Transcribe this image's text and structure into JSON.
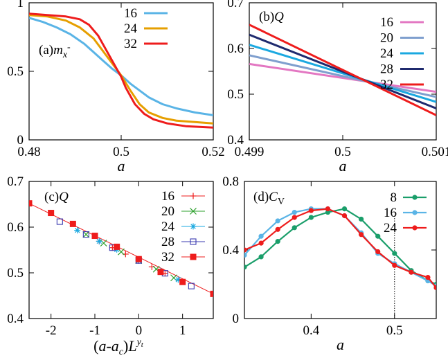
{
  "chart_data": [
    {
      "id": "a",
      "type": "line",
      "panel_label": "(a)",
      "panel_symbol": "m",
      "panel_sub": "x",
      "panel_sup": "-",
      "xlabel": "a",
      "xlim": [
        0.48,
        0.52
      ],
      "ylim": [
        0,
        1
      ],
      "xticks": [
        0.48,
        0.5,
        0.52
      ],
      "xtick_labels": [
        "0.48",
        "0.5",
        "0.52"
      ],
      "yticks": [
        0,
        0.5,
        1
      ],
      "ytick_labels": [
        "0",
        "0.5",
        "1"
      ],
      "legend_position": "top-right",
      "series": [
        {
          "name": "16",
          "color": "#5ab4e6",
          "x": [
            0.48,
            0.483,
            0.486,
            0.489,
            0.492,
            0.494,
            0.496,
            0.498,
            0.5,
            0.502,
            0.504,
            0.506,
            0.509,
            0.512,
            0.516,
            0.52
          ],
          "y": [
            0.89,
            0.86,
            0.82,
            0.77,
            0.7,
            0.64,
            0.58,
            0.52,
            0.47,
            0.41,
            0.36,
            0.31,
            0.26,
            0.23,
            0.2,
            0.18
          ]
        },
        {
          "name": "24",
          "color": "#e69f00",
          "x": [
            0.48,
            0.484,
            0.488,
            0.491,
            0.494,
            0.496,
            0.498,
            0.5,
            0.502,
            0.504,
            0.506,
            0.509,
            0.512,
            0.516,
            0.52
          ],
          "y": [
            0.91,
            0.9,
            0.87,
            0.82,
            0.74,
            0.65,
            0.56,
            0.47,
            0.36,
            0.26,
            0.2,
            0.16,
            0.14,
            0.13,
            0.12
          ]
        },
        {
          "name": "32",
          "color": "#ee1c1c",
          "x": [
            0.48,
            0.484,
            0.488,
            0.491,
            0.493,
            0.495,
            0.497,
            0.499,
            0.5,
            0.501,
            0.503,
            0.505,
            0.507,
            0.51,
            0.514,
            0.52
          ],
          "y": [
            0.92,
            0.91,
            0.9,
            0.88,
            0.84,
            0.76,
            0.64,
            0.52,
            0.46,
            0.38,
            0.26,
            0.19,
            0.15,
            0.12,
            0.1,
            0.09
          ]
        }
      ]
    },
    {
      "id": "b",
      "type": "line",
      "panel_label": "(b)",
      "panel_symbol": "Q",
      "xlabel": "a",
      "xlim": [
        0.499,
        0.501
      ],
      "ylim": [
        0.4,
        0.7
      ],
      "xticks": [
        0.499,
        0.5,
        0.501
      ],
      "xtick_labels": [
        "0.499",
        "0.5",
        "0.501"
      ],
      "yticks": [
        0.4,
        0.5,
        0.6,
        0.7
      ],
      "ytick_labels": [
        "0.4",
        "0.5",
        "0.6",
        "0.7"
      ],
      "legend_position": "top-right",
      "series": [
        {
          "name": "16",
          "color": "#e377c2",
          "x": [
            0.499,
            0.501
          ],
          "y": [
            0.566,
            0.505
          ]
        },
        {
          "name": "20",
          "color": "#7f9fce",
          "x": [
            0.499,
            0.501
          ],
          "y": [
            0.585,
            0.494
          ]
        },
        {
          "name": "24",
          "color": "#1aa8e0",
          "x": [
            0.499,
            0.501
          ],
          "y": [
            0.608,
            0.483
          ]
        },
        {
          "name": "28",
          "color": "#1f2a6e",
          "x": [
            0.499,
            0.501
          ],
          "y": [
            0.63,
            0.469
          ]
        },
        {
          "name": "32",
          "color": "#ee1c1c",
          "x": [
            0.499,
            0.501
          ],
          "y": [
            0.652,
            0.454
          ]
        }
      ]
    },
    {
      "id": "c",
      "type": "scatter",
      "panel_label": "(c)",
      "panel_symbol": "Q",
      "xlabel": "(a-a_c)L^{y_t}",
      "xlabel_parts": [
        "(",
        "a",
        "-",
        "a",
        "c",
        ")",
        "L",
        "y",
        "t"
      ],
      "xlim": [
        -2.5,
        1.7
      ],
      "ylim": [
        0.4,
        0.7
      ],
      "xticks": [
        -2,
        -1,
        0,
        1
      ],
      "xtick_labels": [
        "-2",
        "-1",
        "0",
        "1"
      ],
      "yticks": [
        0.4,
        0.5,
        0.6,
        0.7
      ],
      "ytick_labels": [
        "0.4",
        "0.5",
        "0.6",
        "0.7"
      ],
      "legend_position": "top-right",
      "fit_line": {
        "x": [
          -2.5,
          1.7
        ],
        "y": [
          0.652,
          0.454
        ],
        "color": "#ee1c1c"
      },
      "series": [
        {
          "name": "16",
          "color": "#ee1c1c",
          "marker": "plus",
          "x": [
            -0.9,
            -0.6,
            -0.3,
            0.0,
            0.3,
            0.6
          ],
          "y": [
            0.569,
            0.555,
            0.541,
            0.527,
            0.513,
            0.499
          ]
        },
        {
          "name": "20",
          "color": "#2ca02c",
          "marker": "x",
          "x": [
            -1.2,
            -0.8,
            -0.4,
            0.0,
            0.4,
            0.8
          ],
          "y": [
            0.584,
            0.565,
            0.546,
            0.527,
            0.508,
            0.489
          ]
        },
        {
          "name": "24",
          "color": "#1aa8e0",
          "marker": "star",
          "x": [
            -1.4,
            -0.9,
            -0.5,
            0.0,
            0.5,
            0.9
          ],
          "y": [
            0.593,
            0.569,
            0.551,
            0.527,
            0.504,
            0.485
          ]
        },
        {
          "name": "28",
          "color": "#3b3bb0",
          "marker": "square-open",
          "x": [
            -1.8,
            -1.2,
            -0.6,
            0.0,
            0.6,
            1.2
          ],
          "y": [
            0.612,
            0.584,
            0.555,
            0.527,
            0.499,
            0.471
          ]
        },
        {
          "name": "32",
          "color": "#ee1c1c",
          "marker": "square-filled",
          "x": [
            -2.5,
            -2.0,
            -1.5,
            -1.0,
            -0.5,
            0.0,
            0.5,
            1.0,
            1.7
          ],
          "y": [
            0.652,
            0.631,
            0.607,
            0.581,
            0.557,
            0.53,
            0.502,
            0.48,
            0.454
          ]
        }
      ]
    },
    {
      "id": "d",
      "type": "line",
      "panel_label": "(d)",
      "panel_symbol": "C",
      "panel_sub": "V",
      "xlabel": "a",
      "xlim": [
        0.32,
        0.55
      ],
      "ylim": [
        0,
        0.8
      ],
      "xticks": [
        0.4,
        0.5
      ],
      "xtick_labels": [
        "0.4",
        "0.5"
      ],
      "yticks": [
        0,
        0.4,
        0.8
      ],
      "ytick_labels": [
        "0",
        "0.4",
        "0.8"
      ],
      "vline": 0.5,
      "legend_position": "top-right",
      "series": [
        {
          "name": "8",
          "color": "#1a9e6a",
          "x": [
            0.32,
            0.34,
            0.36,
            0.38,
            0.4,
            0.42,
            0.44,
            0.46,
            0.48,
            0.5,
            0.52,
            0.54,
            0.55
          ],
          "y": [
            0.3,
            0.36,
            0.45,
            0.53,
            0.59,
            0.62,
            0.64,
            0.58,
            0.48,
            0.38,
            0.28,
            0.22,
            0.2
          ]
        },
        {
          "name": "16",
          "color": "#5ab4e6",
          "x": [
            0.32,
            0.34,
            0.36,
            0.38,
            0.4,
            0.42,
            0.44,
            0.46,
            0.48,
            0.5,
            0.52,
            0.54,
            0.55
          ],
          "y": [
            0.37,
            0.48,
            0.57,
            0.62,
            0.64,
            0.64,
            0.6,
            0.5,
            0.38,
            0.32,
            0.27,
            0.22,
            0.19
          ]
        },
        {
          "name": "24",
          "color": "#ee1c1c",
          "x": [
            0.32,
            0.34,
            0.36,
            0.38,
            0.4,
            0.42,
            0.44,
            0.46,
            0.48,
            0.5,
            0.52,
            0.54,
            0.55
          ],
          "y": [
            0.4,
            0.44,
            0.52,
            0.59,
            0.63,
            0.64,
            0.6,
            0.49,
            0.39,
            0.31,
            0.27,
            0.24,
            0.18
          ]
        }
      ]
    }
  ]
}
